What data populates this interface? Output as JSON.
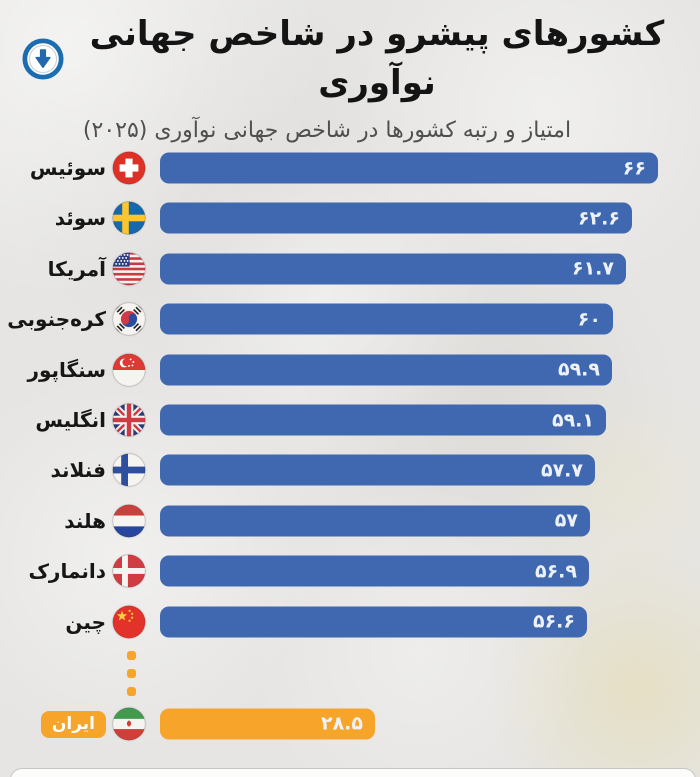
{
  "header": {
    "title": "کشورهای پیشرو در شاخص جهانی نوآوری",
    "subtitle": "امتیاز و رتبه کشورها در شاخص جهانی نوآوری (۲۰۲۵)",
    "badge_icon": "download-arrow-circle-icon",
    "badge_color": "#1b6cb0"
  },
  "chart_data": {
    "type": "bar",
    "orientation": "horizontal",
    "title": "کشورهای پیشرو در شاخص جهانی نوآوری",
    "subtitle": "امتیاز و رتبه کشورها در شاخص جهانی نوآوری (۲۰۲۵)",
    "categories": [
      "سوئیس",
      "سوئد",
      "آمریکا",
      "کره‌جنوبی",
      "سنگاپور",
      "انگلیس",
      "فنلاند",
      "هلند",
      "دانمارک",
      "چین",
      "ایران"
    ],
    "values": [
      66,
      62.6,
      61.7,
      60,
      59.9,
      59.1,
      57.7,
      57,
      56.9,
      56.6,
      28.5
    ],
    "value_labels": [
      "۶۶",
      "۶۲.۶",
      "۶۱.۷",
      "۶۰",
      "۵۹.۹",
      "۵۹.۱",
      "۵۷.۷",
      "۵۷",
      "۵۶.۹",
      "۵۶.۶",
      "۲۸.۵"
    ],
    "flag_icons": [
      "switzerland-flag-icon",
      "sweden-flag-icon",
      "usa-flag-icon",
      "south-korea-flag-icon",
      "singapore-flag-icon",
      "uk-flag-icon",
      "finland-flag-icon",
      "netherlands-flag-icon",
      "denmark-flag-icon",
      "china-flag-icon",
      "iran-flag-icon"
    ],
    "xlim": [
      0,
      70
    ],
    "grid": false,
    "legend": false,
    "bar_color": "#3f68b0",
    "highlight_color": "#f6a42a",
    "highlight_index": 10,
    "value_text_color": "#edf2fa",
    "ellipsis_between": [
      9,
      10
    ],
    "ellipsis_dot_count": 3
  }
}
